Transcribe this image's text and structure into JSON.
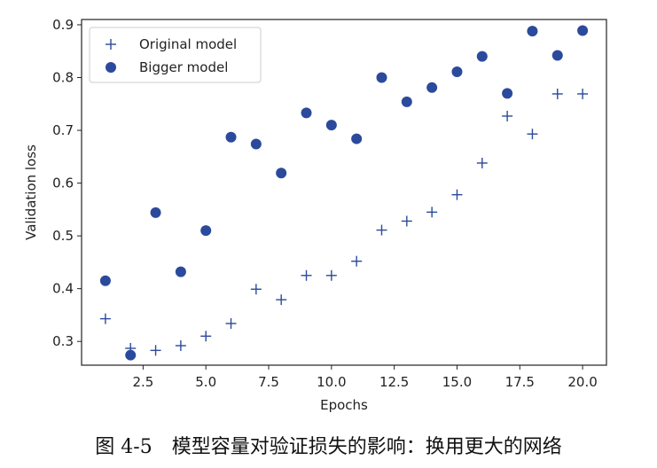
{
  "chart_data": {
    "type": "scatter",
    "title": "",
    "xlabel": "Epochs",
    "ylabel": "Validation loss",
    "xlim": [
      0.05,
      20.95
    ],
    "ylim": [
      0.255,
      0.91
    ],
    "xticks": [
      2.5,
      5.0,
      7.5,
      10.0,
      12.5,
      15.0,
      17.5,
      20.0
    ],
    "yticks": [
      0.3,
      0.4,
      0.5,
      0.6,
      0.7,
      0.8,
      0.9
    ],
    "legend_position": "top-left",
    "grid": false,
    "series": [
      {
        "name": "Original model",
        "marker": "plus",
        "color": "#2b4a9c",
        "x": [
          1,
          2,
          3,
          4,
          5,
          6,
          7,
          8,
          9,
          10,
          11,
          12,
          13,
          14,
          15,
          16,
          17,
          18,
          19,
          20
        ],
        "values": [
          0.343,
          0.287,
          0.283,
          0.292,
          0.31,
          0.334,
          0.399,
          0.379,
          0.425,
          0.425,
          0.452,
          0.511,
          0.528,
          0.545,
          0.578,
          0.638,
          0.727,
          0.693,
          0.769,
          0.769
        ]
      },
      {
        "name": "Bigger model",
        "marker": "circle",
        "color": "#2b4a9c",
        "x": [
          1,
          2,
          3,
          4,
          5,
          6,
          7,
          8,
          9,
          10,
          11,
          12,
          13,
          14,
          15,
          16,
          17,
          18,
          19,
          20
        ],
        "values": [
          0.415,
          0.274,
          0.544,
          0.432,
          0.51,
          0.687,
          0.674,
          0.619,
          0.733,
          0.71,
          0.684,
          0.8,
          0.754,
          0.781,
          0.811,
          0.84,
          0.77,
          0.888,
          0.842,
          0.889
        ]
      }
    ]
  },
  "caption": "图 4-5　模型容量对验证损失的影响：换用更大的网络"
}
